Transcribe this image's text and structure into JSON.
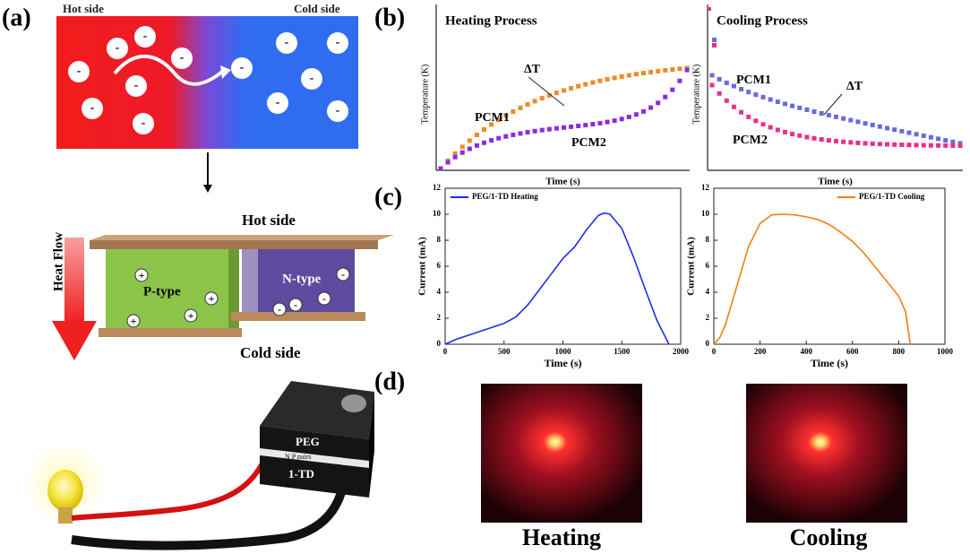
{
  "panel_labels": [
    "(a)",
    "(b)",
    "(c)",
    "(d)"
  ],
  "panel_a": {
    "hot_side": "Hot side",
    "cold_side": "Cold side",
    "electron_sign": "-",
    "hole_sign": "+",
    "module_hot": "Hot side",
    "module_cold": "Cold side",
    "heat_flow": "Heat Flow",
    "p_type": "P-type",
    "n_type": "N-type",
    "device_top": "PEG",
    "device_mid": "N P pairs",
    "device_bottom": "1-TD"
  },
  "panel_b": [
    {
      "title": "Heating Process",
      "x_label": "Time (s)",
      "y_label": "Temperature (K)",
      "series": [
        "PCM1",
        "PCM2"
      ],
      "annotation": "ΔT"
    },
    {
      "title": "Cooling Process",
      "x_label": "Time (s)",
      "y_label": "Temperature (K)",
      "series": [
        "PCM1",
        "PCM2"
      ],
      "annotation": "ΔT"
    }
  ],
  "chart_data": [
    {
      "type": "line",
      "x_label": "Time (s)",
      "y_label": "Current (mA)",
      "xlim": [
        0,
        2000
      ],
      "xticks": [
        0,
        500,
        1000,
        1500,
        2000
      ],
      "ylim": [
        0,
        12
      ],
      "yticks": [
        0,
        2,
        4,
        6,
        8,
        10,
        12
      ],
      "legend": "upper left",
      "series": [
        {
          "name": "PEG/1-TD Heating",
          "color": "#1f2ee0",
          "x": [
            0,
            100,
            200,
            300,
            400,
            500,
            600,
            700,
            800,
            900,
            1000,
            1100,
            1200,
            1300,
            1350,
            1400,
            1500,
            1600,
            1700,
            1800,
            1900
          ],
          "values": [
            0,
            0.4,
            0.7,
            1.0,
            1.3,
            1.6,
            2.1,
            3.0,
            4.2,
            5.4,
            6.6,
            7.5,
            8.8,
            9.9,
            10.1,
            10.0,
            8.9,
            6.7,
            4.2,
            1.8,
            0
          ]
        }
      ]
    },
    {
      "type": "line",
      "x_label": "Time (s)",
      "y_label": "Current (mA)",
      "xlim": [
        0,
        1000
      ],
      "xticks": [
        0,
        200,
        400,
        600,
        800,
        1000
      ],
      "ylim": [
        0,
        12
      ],
      "yticks": [
        0,
        2,
        4,
        6,
        8,
        10,
        12
      ],
      "legend": "upper right",
      "series": [
        {
          "name": "PEG/1-TD Cooling",
          "color": "#f07f12",
          "x": [
            0,
            25,
            50,
            100,
            150,
            200,
            250,
            300,
            350,
            400,
            450,
            500,
            550,
            600,
            650,
            700,
            750,
            800,
            830,
            850
          ],
          "values": [
            0,
            0.5,
            1.5,
            4.5,
            7.5,
            9.3,
            9.95,
            10.0,
            9.95,
            9.8,
            9.6,
            9.2,
            8.6,
            7.9,
            7.0,
            5.9,
            4.8,
            3.7,
            2.5,
            0
          ]
        }
      ]
    }
  ],
  "panel_d": {
    "captions": [
      "Heating",
      "Cooling"
    ]
  }
}
